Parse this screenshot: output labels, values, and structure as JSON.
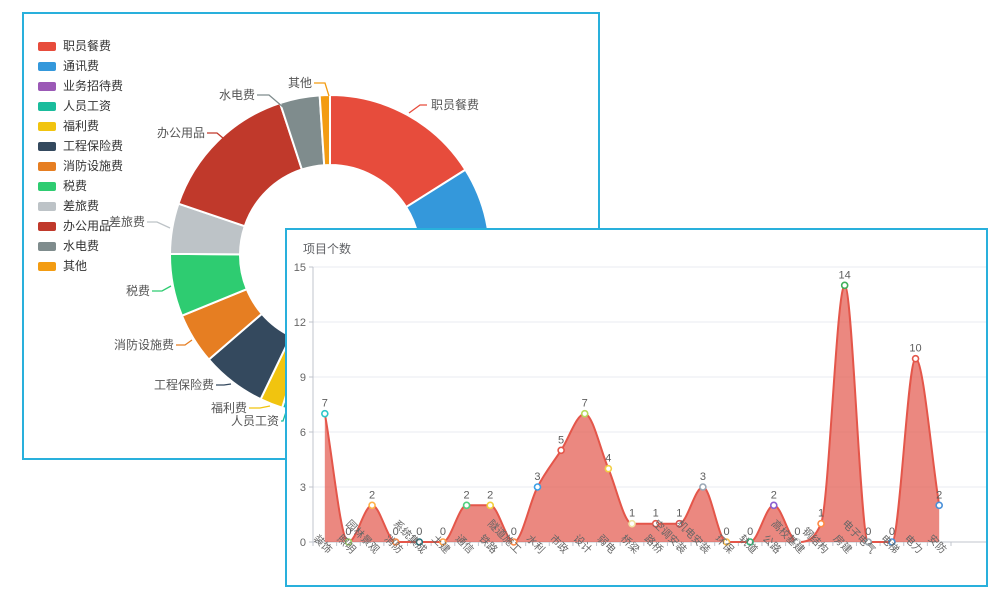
{
  "chart_data": [
    {
      "type": "pie",
      "subtype": "donut",
      "title": "",
      "legend_position": "left",
      "legend": [
        "职员餐费",
        "通讯费",
        "业务招待费",
        "人员工资",
        "福利费",
        "工程保险费",
        "消防设施费",
        "税费",
        "差旅费",
        "办公用品",
        "水电费",
        "其他"
      ],
      "colors": [
        "#e74c3c",
        "#3498db",
        "#9b59b6",
        "#1abc9c",
        "#f1c40f",
        "#34495e",
        "#e67e22",
        "#2ecc71",
        "#bdc3c7",
        "#c0392b",
        "#7f8c8d",
        "#f39c12"
      ],
      "segments": [
        {
          "label": "职员餐费",
          "color": "#e74c3c",
          "start_deg": 0,
          "end_deg": 57.8,
          "share_pct_est": 16.1,
          "label_visible": true
        },
        {
          "label": "通讯费",
          "color": "#3498db",
          "start_deg": 57.8,
          "end_deg": 97,
          "share_pct_est": 10.9,
          "label_visible": false
        },
        {
          "label": "业务招待费",
          "color": "#9b59b6",
          "start_deg": 97,
          "end_deg": 145,
          "share_pct_est": 13.3,
          "label_visible": false
        },
        {
          "label": "人员工资",
          "color": "#1abc9c",
          "start_deg": 145,
          "end_deg": 197.4,
          "share_pct_est": 14.6,
          "label_visible": true
        },
        {
          "label": "福利费",
          "color": "#f1c40f",
          "start_deg": 197.4,
          "end_deg": 205.7,
          "share_pct_est": 2.3,
          "label_visible": true
        },
        {
          "label": "工程保险费",
          "color": "#34495e",
          "start_deg": 205.7,
          "end_deg": 229.2,
          "share_pct_est": 6.5,
          "label_visible": true
        },
        {
          "label": "消防设施费",
          "color": "#e67e22",
          "start_deg": 229.2,
          "end_deg": 247.7,
          "share_pct_est": 5.1,
          "label_visible": true
        },
        {
          "label": "税费",
          "color": "#2ecc71",
          "start_deg": 247.7,
          "end_deg": 270.4,
          "share_pct_est": 6.3,
          "label_visible": true
        },
        {
          "label": "差旅费",
          "color": "#bdc3c7",
          "start_deg": 270.4,
          "end_deg": 288.7,
          "share_pct_est": 5.1,
          "label_visible": true
        },
        {
          "label": "办公用品",
          "color": "#c0392b",
          "start_deg": 288.7,
          "end_deg": 341.8,
          "share_pct_est": 14.8,
          "label_visible": true
        },
        {
          "label": "水电费",
          "color": "#7f8c8d",
          "start_deg": 341.8,
          "end_deg": 356.3,
          "share_pct_est": 4.0,
          "label_visible": true
        },
        {
          "label": "其他",
          "color": "#f39c12",
          "start_deg": 356.3,
          "end_deg": 360,
          "share_pct_est": 1.0,
          "label_visible": true
        }
      ]
    },
    {
      "type": "area",
      "title": "项目个数",
      "smooth": true,
      "grid": "on",
      "ylim": [
        0,
        15
      ],
      "y_ticks": [
        0,
        3,
        6,
        9,
        12,
        15
      ],
      "categories": [
        "装饰",
        "照明",
        "园林景观",
        "消防",
        "系统集成",
        "土建",
        "通信",
        "铁路",
        "隧道施工",
        "水利",
        "市政",
        "设计",
        "弱电",
        "桥梁",
        "路桥",
        "空调安装",
        "机电安装",
        "环保",
        "轨道",
        "公路",
        "高校基建",
        "钢结构",
        "房建",
        "电子电气",
        "电梯",
        "电力",
        "安防"
      ],
      "values": [
        7,
        0,
        2,
        0,
        0,
        0,
        2,
        2,
        0,
        3,
        5,
        7,
        4,
        1,
        1,
        1,
        3,
        0,
        0,
        2,
        0,
        1,
        14,
        0,
        0,
        10,
        2
      ],
      "line_color": "#e4564a",
      "fill_color": "rgba(227,90,79,0.72)",
      "point_colors": [
        "#2ec7c9",
        "#9fd66b",
        "#ffb248",
        "#ff8a45",
        "#256f78",
        "#ff9f45",
        "#4fcf7e",
        "#f2d03c",
        "#ff8a45",
        "#3b9fe6",
        "#e4564a",
        "#b8d95a",
        "#f2cf45",
        "#efe3a2",
        "#e4564a",
        "#d9534f",
        "#9aa7b5",
        "#ffbf45",
        "#37b97a",
        "#8a5fd0",
        "#d8d8d8",
        "#ff8a45",
        "#3faf5a",
        "#9aa5ad",
        "#4a90d9",
        "#e4564a",
        "#4a90d9"
      ]
    }
  ],
  "style": {
    "panel_border": "#29b0dc",
    "axis_line": "#c0c4cc",
    "grid_line": "#e8ebf2",
    "axis_label": "#666666",
    "value_label": "#5e5e5e",
    "donut_label": "#555555"
  }
}
